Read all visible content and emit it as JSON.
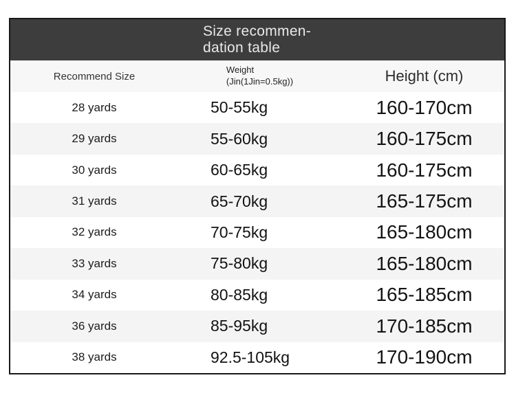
{
  "table": {
    "title_line1": "Size recommen-",
    "title_line2": "dation table",
    "header": {
      "size": "Recommend Size",
      "weight_line1": "Weight",
      "weight_line2": "(Jin(1Jin=0.5kg))",
      "height": "Height (cm)"
    },
    "colors": {
      "title_bar_bg": "#3d3d3d",
      "title_text": "#e9e9e9",
      "header_row_bg": "#f7f7f7",
      "row_bg": "#ffffff",
      "row_alt_bg": "#f4f4f4",
      "border": "#191919",
      "text": "#141414"
    }
  },
  "chart_data": {
    "type": "table",
    "title": "Size recommendation table",
    "columns": [
      "Recommend Size",
      "Weight (Jin(1Jin=0.5kg))",
      "Height (cm)"
    ],
    "rows": [
      [
        "28 yards",
        "50-55kg",
        "160-170cm"
      ],
      [
        "29 yards",
        "55-60kg",
        "160-175cm"
      ],
      [
        "30 yards",
        "60-65kg",
        "160-175cm"
      ],
      [
        "31 yards",
        "65-70kg",
        "165-175cm"
      ],
      [
        "32 yards",
        "70-75kg",
        "165-180cm"
      ],
      [
        "33 yards",
        "75-80kg",
        "165-180cm"
      ],
      [
        "34 yards",
        "80-85kg",
        "165-185cm"
      ],
      [
        "36 yards",
        "85-95kg",
        "170-185cm"
      ],
      [
        "38 yards",
        "92.5-105kg",
        "170-190cm"
      ]
    ]
  }
}
